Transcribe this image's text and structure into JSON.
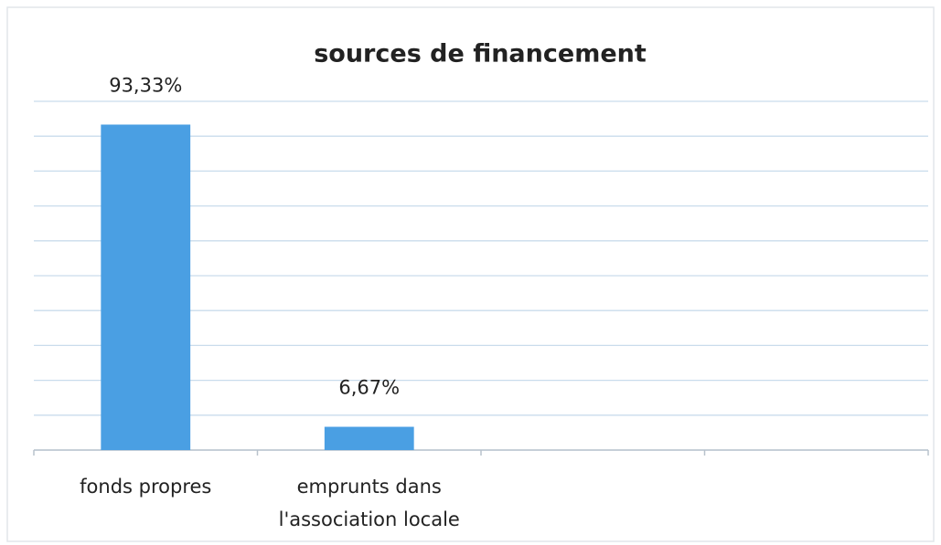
{
  "chart_data": {
    "type": "bar",
    "title": "sources de financement",
    "categories": [
      "fonds propres",
      "emprunts dans l'association locale",
      null,
      null
    ],
    "values": [
      93.33,
      6.67,
      null,
      null
    ],
    "value_labels": [
      "93,33%",
      "6,67%",
      null,
      null
    ],
    "color": "#4a9fe3",
    "ylim": [
      0,
      100
    ],
    "yticks": [
      0,
      10,
      20,
      30,
      40,
      50,
      60,
      70,
      80,
      90,
      100
    ],
    "grid": true
  }
}
